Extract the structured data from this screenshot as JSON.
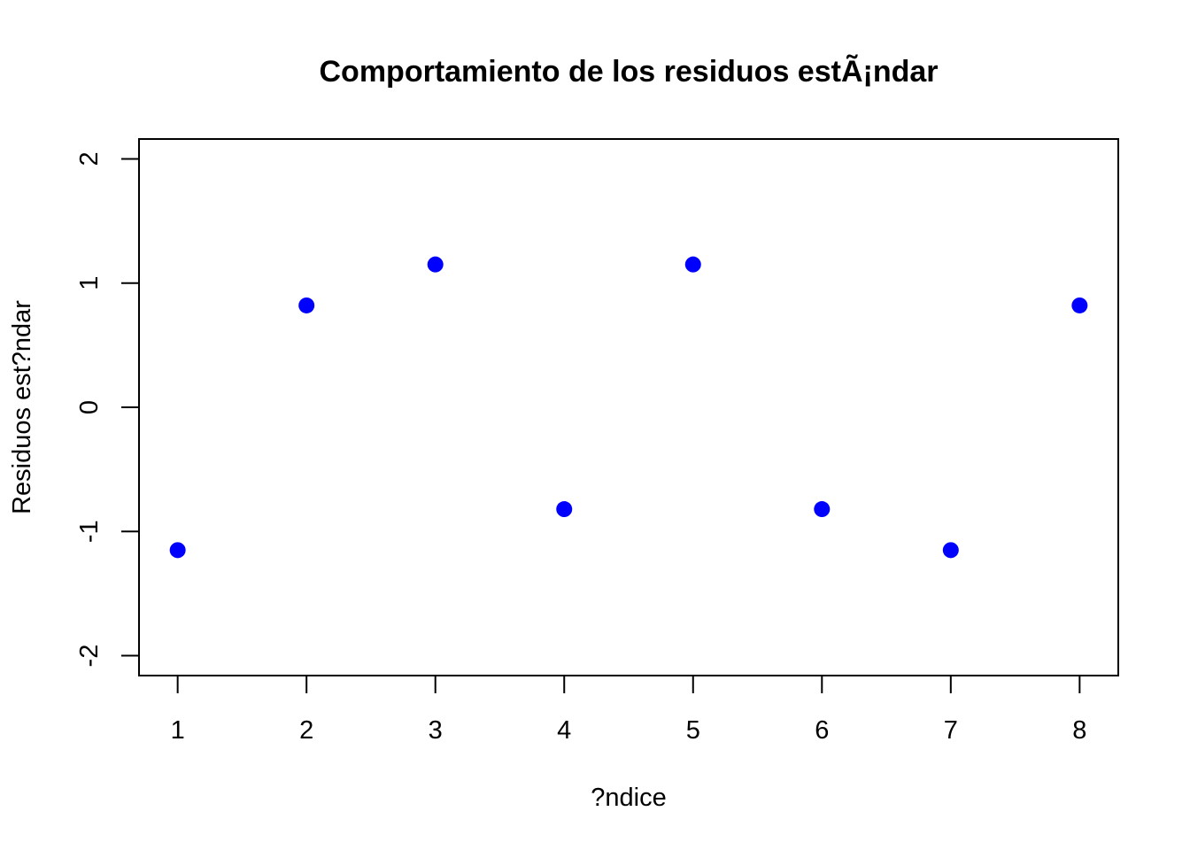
{
  "chart_data": {
    "type": "scatter",
    "title": "Comportamiento de los residuos estÃ¡ndar",
    "xlabel": "?ndice",
    "ylabel": "Residuos est?ndar",
    "xlim": [
      0.7,
      8.3
    ],
    "ylim": [
      -2.16,
      2.16
    ],
    "x_ticks": [
      1,
      2,
      3,
      4,
      5,
      6,
      7,
      8
    ],
    "y_ticks": [
      -2,
      -1,
      0,
      1,
      2
    ],
    "grid": false,
    "legend": "none",
    "marker_color": "#0000FF",
    "series": [
      {
        "x": [
          1,
          2,
          3,
          4,
          5,
          6,
          7,
          8
        ],
        "values": [
          -1.15,
          0.82,
          1.15,
          -0.82,
          1.15,
          -0.82,
          -1.15,
          0.82
        ]
      }
    ]
  }
}
